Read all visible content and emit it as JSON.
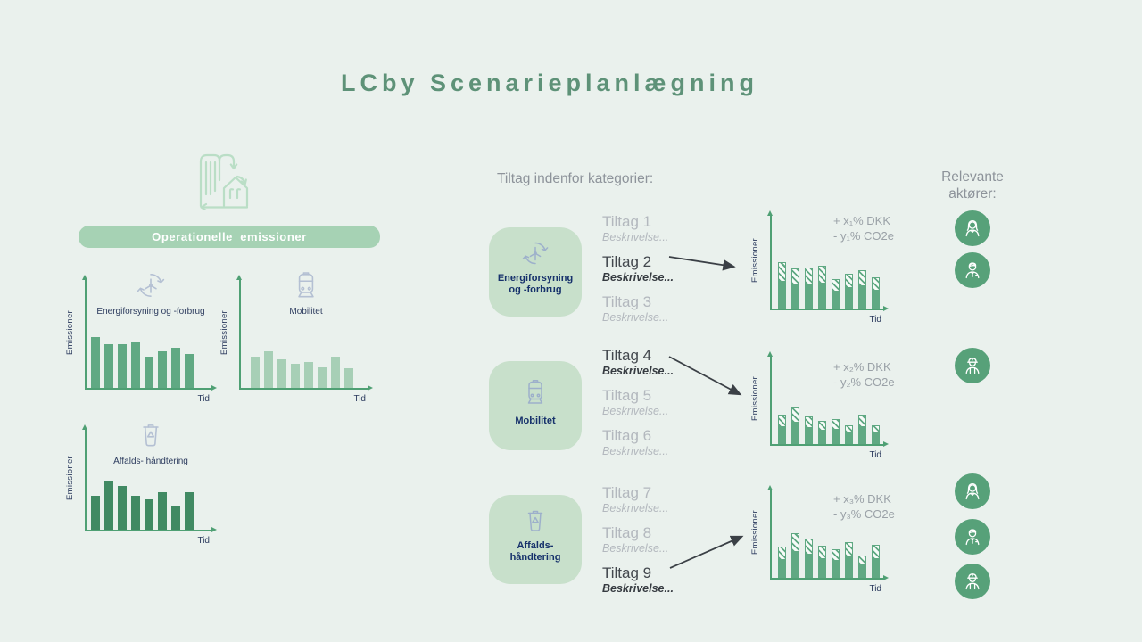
{
  "title": "LCby Scenarieplanlægning",
  "left_panel": {
    "banner_label": "Operationelle emissioner",
    "building_icon": "building-emissions-icon"
  },
  "middle": {
    "heading": "Tiltag indenfor kategorier:",
    "categories": [
      {
        "label_line1": "Energiforsyning",
        "label_line2": "og -forbrug",
        "icon": "wind-turbine-cycle-icon",
        "tiltag": [
          {
            "name": "Tiltag 1",
            "desc": "Beskrivelse...",
            "active": false
          },
          {
            "name": "Tiltag 2",
            "desc": "Beskrivelse...",
            "active": true
          },
          {
            "name": "Tiltag 3",
            "desc": "Beskrivelse...",
            "active": false
          }
        ]
      },
      {
        "label_line1": "Mobilitet",
        "label_line2": "",
        "icon": "train-icon",
        "tiltag": [
          {
            "name": "Tiltag 4",
            "desc": "Beskrivelse...",
            "active": true
          },
          {
            "name": "Tiltag 5",
            "desc": "Beskrivelse...",
            "active": false
          },
          {
            "name": "Tiltag 6",
            "desc": "Beskrivelse...",
            "active": false
          }
        ]
      },
      {
        "label_line1": "Affalds-",
        "label_line2": "håndtering",
        "icon": "trash-recycle-icon",
        "tiltag": [
          {
            "name": "Tiltag 7",
            "desc": "Beskrivelse...",
            "active": false
          },
          {
            "name": "Tiltag 8",
            "desc": "Beskrivelse...",
            "active": false
          },
          {
            "name": "Tiltag 9",
            "desc": "Beskrivelse...",
            "active": true
          }
        ]
      }
    ]
  },
  "actors": {
    "heading_line1": "Relevante",
    "heading_line2": "aktører:",
    "groups": [
      {
        "members": [
          "businesswoman",
          "businessman"
        ]
      },
      {
        "members": [
          "construction-worker"
        ]
      },
      {
        "members": [
          "businesswoman",
          "businessman",
          "construction-worker"
        ]
      }
    ]
  },
  "colors": {
    "background": "#eaf1ed",
    "title_green": "#5e9278",
    "banner_green": "#a6d2b4",
    "category_box_green": "#c8e0cb",
    "avatar_green": "#57a179",
    "axis_green": "#4fa074",
    "navy_label": "#2c3b5e",
    "category_label_navy": "#16316b",
    "grey_text": "#8d939a",
    "inactive_grey": "#b3b8be",
    "active_dark": "#43484e",
    "arrow_dark": "#3b4046"
  },
  "chart_data": [
    {
      "type": "bar",
      "id": "baseline-energy",
      "title": "Energiforsyning og -forbrug",
      "ylabel": "Emissioner",
      "xlabel": "Tid",
      "values": [
        57,
        49,
        49,
        52,
        35,
        41,
        45,
        38
      ],
      "values_unit": "relative emission height (px, unlabeled conceptual axis)",
      "bar_color": "#60a983",
      "hatched": false,
      "grid": false,
      "legend": "none"
    },
    {
      "type": "bar",
      "id": "baseline-mobility",
      "title": "Mobilitet",
      "ylabel": "Emissioner",
      "xlabel": "Tid",
      "values": [
        35,
        41,
        32,
        27,
        29,
        23,
        35,
        22
      ],
      "values_unit": "relative emission height (px, unlabeled conceptual axis)",
      "bar_color": "#a7cfb6",
      "hatched": false,
      "grid": false,
      "legend": "none"
    },
    {
      "type": "bar",
      "id": "baseline-waste",
      "title": "Affalds- håndtering",
      "ylabel": "Emissioner",
      "xlabel": "Tid",
      "values": [
        38,
        55,
        49,
        38,
        34,
        42,
        27,
        42
      ],
      "values_unit": "relative emission height (px, unlabeled conceptual axis)",
      "bar_color": "#418a63",
      "hatched": false,
      "grid": false,
      "legend": "none"
    },
    {
      "type": "bar",
      "id": "scenario-energy",
      "title": "",
      "ylabel": "Emissioner",
      "xlabel": "Tid",
      "values": [
        52,
        45,
        46,
        48,
        33,
        39,
        43,
        35
      ],
      "values_unit": "relative emission height (px, unlabeled conceptual axis)",
      "bar_color": "#60a983",
      "hatched": true,
      "hatch_fraction": 0.42,
      "annotation": {
        "cost": "+ x₁% DKK",
        "co2": "- y₁% CO2e"
      },
      "grid": false,
      "legend": "none"
    },
    {
      "type": "bar",
      "id": "scenario-mobility",
      "title": "",
      "ylabel": "Emissioner",
      "xlabel": "Tid",
      "values": [
        33,
        41,
        31,
        26,
        28,
        21,
        33,
        21
      ],
      "values_unit": "relative emission height (px, unlabeled conceptual axis)",
      "bar_color": "#60a983",
      "hatched": true,
      "hatch_fraction": 0.42,
      "annotation": {
        "cost": "+ x₂% DKK",
        "co2": "- y₂% CO2e"
      },
      "grid": false,
      "legend": "none"
    },
    {
      "type": "bar",
      "id": "scenario-waste",
      "title": "",
      "ylabel": "Emissioner",
      "xlabel": "Tid",
      "values": [
        35,
        50,
        44,
        36,
        32,
        40,
        25,
        37
      ],
      "values_unit": "relative emission height (px, unlabeled conceptual axis)",
      "bar_color": "#60a983",
      "hatched": true,
      "hatch_fraction": 0.42,
      "annotation": {
        "cost": "+ x₃% DKK",
        "co2": "- y₃% CO2e"
      },
      "grid": false,
      "legend": "none"
    }
  ]
}
